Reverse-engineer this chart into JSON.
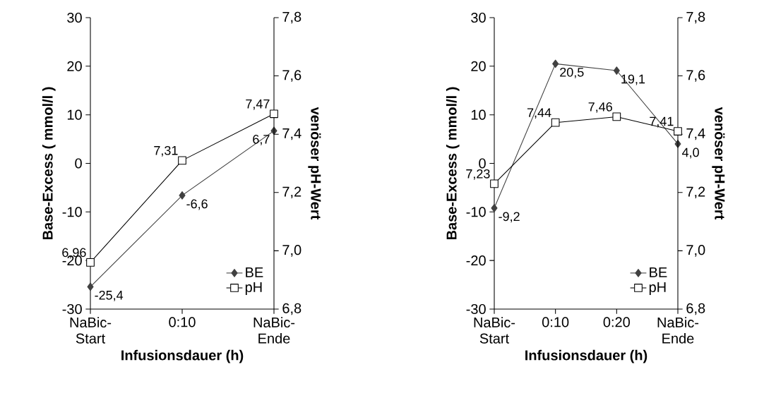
{
  "chart_data": [
    {
      "type": "line",
      "categories": [
        "NaBic- Start",
        "0:10",
        "NaBic- Ende"
      ],
      "xlabel": "Infusionsdauer (h)",
      "ylabel": "Base-Excess ( mmol/l )",
      "y2label": "venöser pH-Wert",
      "ylim": [
        -30,
        30
      ],
      "yticks": [
        -30,
        -20,
        -10,
        0,
        10,
        20,
        30
      ],
      "y2lim": [
        6.8,
        7.8
      ],
      "y2ticks": [
        {
          "value": 6.8,
          "label": "6,8"
        },
        {
          "value": 7.0,
          "label": "7,0"
        },
        {
          "value": 7.2,
          "label": "7,2"
        },
        {
          "value": 7.4,
          "label": "7,4"
        },
        {
          "value": 7.6,
          "label": "7,6"
        },
        {
          "value": 7.8,
          "label": "7,8"
        }
      ],
      "legend": "bottom right",
      "series": [
        {
          "name": "BE",
          "color": "#404040",
          "marker": "diamond",
          "values": [
            -25.4,
            -6.6,
            6.7
          ],
          "value_labels": [
            "-25,4",
            "-6,6",
            "6,7"
          ]
        },
        {
          "name": "pH",
          "color": "#000000",
          "marker": "square",
          "axis": "y2",
          "values": [
            6.96,
            7.31,
            7.47
          ],
          "value_labels": [
            "6,96",
            "7,31",
            "7,47"
          ]
        }
      ]
    },
    {
      "type": "line",
      "categories": [
        "NaBic- Start",
        "0:10",
        "0:20",
        "NaBic- Ende"
      ],
      "xlabel": "Infusionsdauer (h)",
      "ylabel": "Base-Excess ( mmol/l )",
      "y2label": "venöser pH-Wert",
      "ylim": [
        -30,
        30
      ],
      "yticks": [
        -30,
        -20,
        -10,
        0,
        10,
        20,
        30
      ],
      "y2lim": [
        6.8,
        7.8
      ],
      "y2ticks": [
        {
          "value": 6.8,
          "label": "6,8"
        },
        {
          "value": 7.0,
          "label": "7,0"
        },
        {
          "value": 7.2,
          "label": "7,2"
        },
        {
          "value": 7.4,
          "label": "7,4"
        },
        {
          "value": 7.6,
          "label": "7,6"
        },
        {
          "value": 7.8,
          "label": "7,8"
        }
      ],
      "legend": "bottom right",
      "series": [
        {
          "name": "BE",
          "color": "#404040",
          "marker": "diamond",
          "values": [
            -9.2,
            20.5,
            19.1,
            4.0
          ],
          "value_labels": [
            "-9,2",
            "20,5",
            "19,1",
            "4,0"
          ]
        },
        {
          "name": "pH",
          "color": "#000000",
          "marker": "square",
          "axis": "y2",
          "values": [
            7.23,
            7.44,
            7.46,
            7.41
          ],
          "value_labels": [
            "7,23",
            "7,44",
            "7,46",
            "7,41"
          ]
        }
      ]
    }
  ]
}
